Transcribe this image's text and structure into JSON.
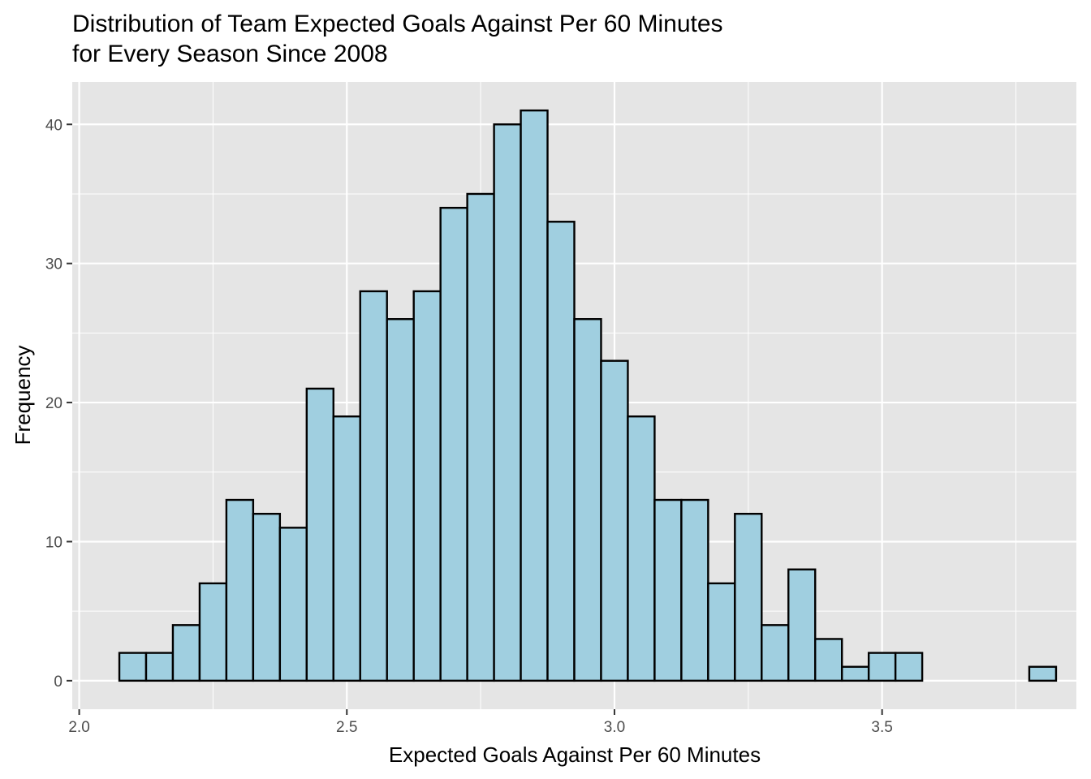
{
  "chart_data": {
    "type": "bar",
    "title": "Distribution of Team Expected Goals Against Per 60 Minutes",
    "subtitle": "for Every Season Since 2008",
    "xlabel": "Expected Goals Against Per 60 Minutes",
    "ylabel": "Frequency",
    "bin_width": 0.05,
    "bin_starts": [
      2.075,
      2.125,
      2.175,
      2.225,
      2.275,
      2.325,
      2.375,
      2.425,
      2.475,
      2.525,
      2.575,
      2.625,
      2.675,
      2.725,
      2.775,
      2.825,
      2.875,
      2.925,
      2.975,
      3.025,
      3.075,
      3.125,
      3.175,
      3.225,
      3.275,
      3.325,
      3.375,
      3.425,
      3.475,
      3.525,
      3.575,
      3.625,
      3.675,
      3.725,
      3.775
    ],
    "values": [
      2,
      2,
      4,
      7,
      13,
      12,
      11,
      21,
      19,
      28,
      26,
      28,
      34,
      35,
      40,
      41,
      33,
      26,
      23,
      19,
      13,
      13,
      7,
      12,
      4,
      8,
      3,
      1,
      2,
      2,
      0,
      0,
      0,
      0,
      1
    ],
    "xlim": [
      1.987,
      3.863
    ],
    "ylim": [
      -2.05,
      43.05
    ],
    "x_ticks": [
      "2.0",
      "2.5",
      "3.0",
      "3.5"
    ],
    "y_ticks": [
      "0",
      "10",
      "20",
      "30",
      "40"
    ],
    "bar_fill": "#a0cfe0",
    "bar_outline": "#000000",
    "panel_background": "#e5e5e5",
    "grid_color": "#ffffff",
    "grid": true,
    "legend": "none"
  }
}
